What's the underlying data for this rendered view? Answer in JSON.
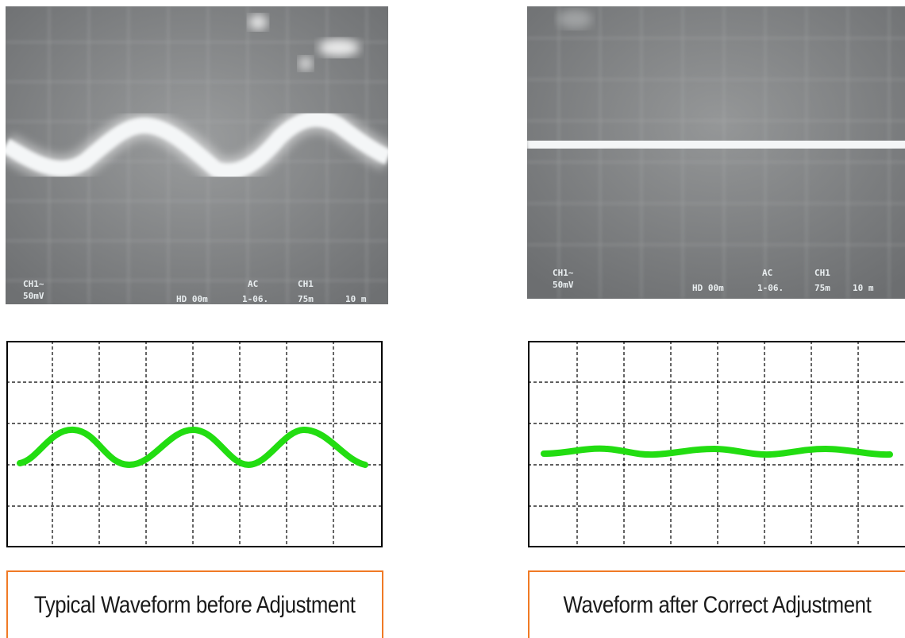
{
  "panels": [
    {
      "id": "before",
      "photo": {
        "readout": {
          "ch": "CH1~",
          "volts": "50mV",
          "hold": "HD 00m",
          "coupling": "AC",
          "trig": "1-06.",
          "chan2": "CH1",
          "level": "75m",
          "time": "10 m"
        }
      },
      "caption": "Typical Waveform before Adjustment"
    },
    {
      "id": "after",
      "photo": {
        "readout": {
          "ch": "CH1~",
          "volts": "50mV",
          "hold": "HD 00m",
          "coupling": "AC",
          "trig": "1-06.",
          "chan2": "CH1",
          "level": "75m",
          "time": "10 m"
        }
      },
      "caption": "Waveform after Correct Adjustment"
    }
  ],
  "colors": {
    "trace": "#22dd11",
    "caption_border": "#f07a25",
    "screen": "#8d8f90"
  }
}
